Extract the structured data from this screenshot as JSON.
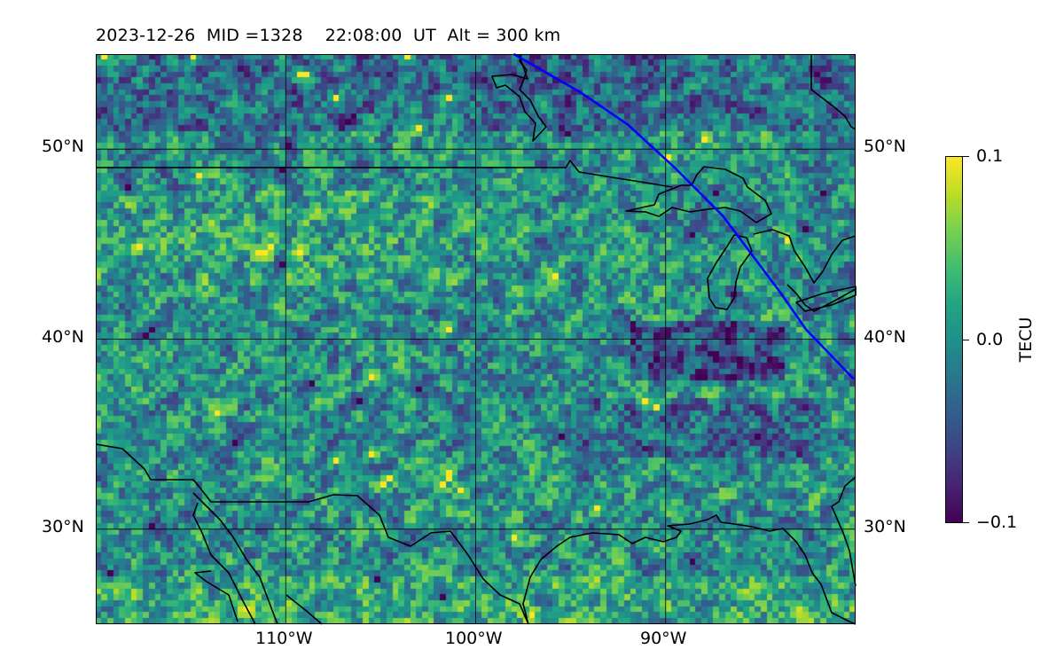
{
  "title": "2023-12-26  MID =1328    22:08:00  UT  Alt = 300 km",
  "map": {
    "lon_range": [
      -120,
      -80
    ],
    "lat_range": [
      25,
      55
    ],
    "lat_ticks": [
      {
        "value": 50,
        "label": "50°N"
      },
      {
        "value": 40,
        "label": "40°N"
      },
      {
        "value": 30,
        "label": "30°N"
      }
    ],
    "lon_ticks": [
      {
        "value": -110,
        "label": "110°W"
      },
      {
        "value": -100,
        "label": "100°W"
      },
      {
        "value": -90,
        "label": "90°W"
      }
    ],
    "gridlines": true,
    "track_color": "#0000ff",
    "track": [
      [
        -98,
        55
      ],
      [
        -94.5,
        53
      ],
      [
        -92,
        51.3
      ],
      [
        -89.5,
        49
      ],
      [
        -87,
        46.5
      ],
      [
        -84,
        42.5
      ],
      [
        -82.6,
        40.5
      ],
      [
        -80.1,
        37.9
      ]
    ]
  },
  "colorbar": {
    "label": "TECU",
    "min_label": "−0.1",
    "mid_label": "0.0",
    "max_label": "0.1",
    "min": -0.1,
    "max": 0.1,
    "colormap": "viridis"
  },
  "chart_data": {
    "type": "heatmap",
    "title": "2023-12-26  MID =1328    22:08:00  UT  Alt = 300 km",
    "variable": "TECU",
    "value_range": [
      -0.1,
      0.1
    ],
    "x_range": [
      -120,
      -80
    ],
    "y_range": [
      25,
      55
    ],
    "notes_visible": "dense noisy field mostly near 0.0 with negative patches near 39°N 88°W and positive spots near 26°N"
  }
}
